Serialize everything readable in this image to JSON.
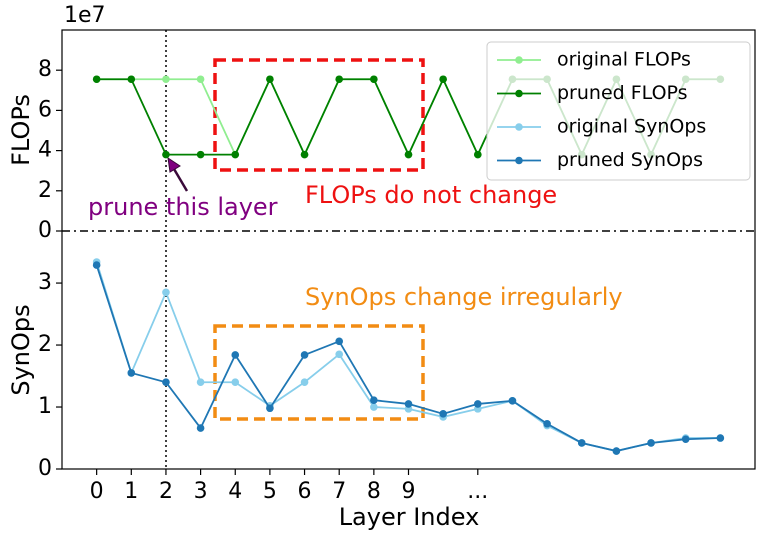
{
  "chart_data": [
    {
      "type": "line",
      "offset_label": "1e7",
      "ylabel": "FLOPs",
      "x": [
        0,
        1,
        2,
        3,
        4,
        5,
        6,
        7,
        8,
        9,
        10,
        11,
        12,
        13,
        14,
        15,
        16,
        17,
        18
      ],
      "xlim": [
        -1,
        19
      ],
      "ylim": [
        0,
        10
      ],
      "yticks": [
        0,
        2,
        4,
        6,
        8
      ],
      "series": [
        {
          "name": "original FLOPs",
          "color": "#90ee90",
          "values": [
            7.55,
            7.55,
            7.55,
            7.55,
            3.8,
            7.55,
            3.8,
            7.55,
            7.55,
            3.8,
            7.55,
            3.8,
            7.55,
            7.55,
            3.8,
            7.55,
            3.8,
            7.55,
            7.55
          ]
        },
        {
          "name": "pruned FLOPs",
          "color": "#008000",
          "values": [
            7.55,
            7.55,
            3.8,
            3.8,
            3.8,
            7.55,
            3.8,
            7.55,
            7.55,
            3.8,
            7.55,
            3.8,
            7.55,
            7.55,
            3.8,
            7.55,
            3.8,
            7.55,
            7.55
          ]
        }
      ],
      "annotations": [
        "prune this layer",
        "FLOPs do not change"
      ],
      "legend": "upper right"
    },
    {
      "type": "line",
      "ylabel": "SynOps",
      "xlabel": "Layer Index",
      "x": [
        0,
        1,
        2,
        3,
        4,
        5,
        6,
        7,
        8,
        9,
        10,
        11,
        12,
        13,
        14,
        15,
        16,
        17,
        18
      ],
      "xlim": [
        -1,
        19
      ],
      "ylim": [
        0,
        3.84
      ],
      "yticks": [
        0,
        1,
        2,
        3
      ],
      "xticks": [
        0,
        1,
        2,
        3,
        4,
        5,
        6,
        7,
        8,
        9,
        {
          "value": 11,
          "label": "..."
        }
      ],
      "series": [
        {
          "name": "original SynOps",
          "color": "#87ceeb",
          "values": [
            3.34,
            1.55,
            2.85,
            1.4,
            1.4,
            1.02,
            1.4,
            1.85,
            1.0,
            0.97,
            0.84,
            0.97,
            1.1,
            0.7,
            0.42,
            0.29,
            0.42,
            0.5,
            0.5
          ]
        },
        {
          "name": "pruned SynOps",
          "color": "#1f77b4",
          "values": [
            3.29,
            1.55,
            1.4,
            0.66,
            1.84,
            0.98,
            1.84,
            2.06,
            1.11,
            1.05,
            0.89,
            1.05,
            1.1,
            0.73,
            0.42,
            0.29,
            0.42,
            0.48,
            0.5
          ]
        }
      ],
      "annotations": [
        "SynOps change irregularly"
      ]
    }
  ]
}
